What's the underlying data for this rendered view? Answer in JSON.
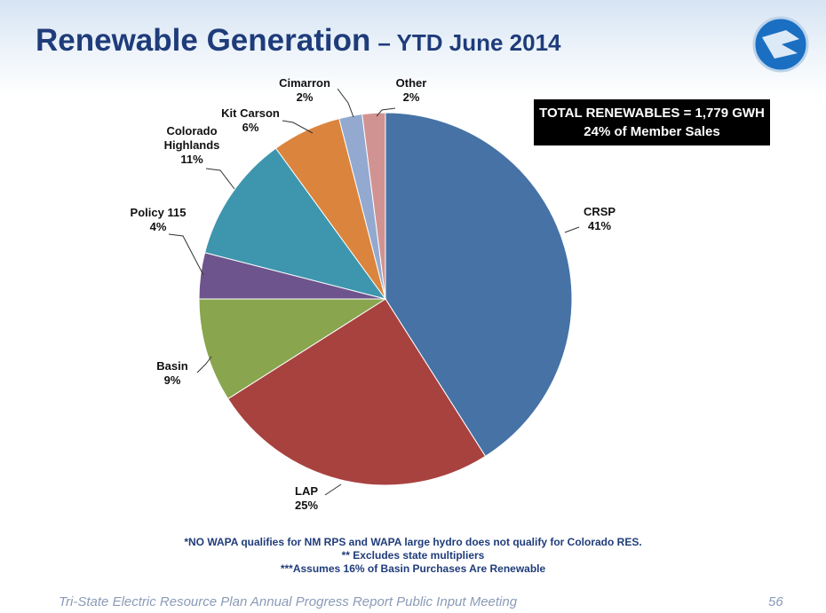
{
  "chart_data": {
    "type": "pie",
    "title": "Renewable Generation",
    "subtitle": "– YTD June 2014",
    "categories": [
      "CRSP",
      "LAP",
      "Basin",
      "Policy 115",
      "Colorado Highlands",
      "Kit Carson",
      "Cimarron",
      "Other"
    ],
    "values": [
      41,
      25,
      9,
      4,
      11,
      6,
      2,
      2
    ],
    "value_labels": [
      "41%",
      "25%",
      "9%",
      "4%",
      "11%",
      "6%",
      "2%",
      "2%"
    ],
    "colors": [
      "#4672a6",
      "#a8423f",
      "#89a54e",
      "#6e548d",
      "#3d96ae",
      "#db843d",
      "#93a9cf",
      "#d19392"
    ],
    "annotations": [
      "TOTAL RENEWABLES = 1,779 GWH",
      "24% of Member Sales"
    ],
    "footnotes": [
      "*NO WAPA qualifies for NM RPS and WAPA large hydro does not qualify for Colorado RES.",
      "** Excludes state multipliers",
      "***Assumes 16% of Basin Purchases Are Renewable"
    ],
    "footer": "Tri-State Electric Resource Plan Annual Progress Report Public Input Meeting",
    "page_number": "56"
  }
}
